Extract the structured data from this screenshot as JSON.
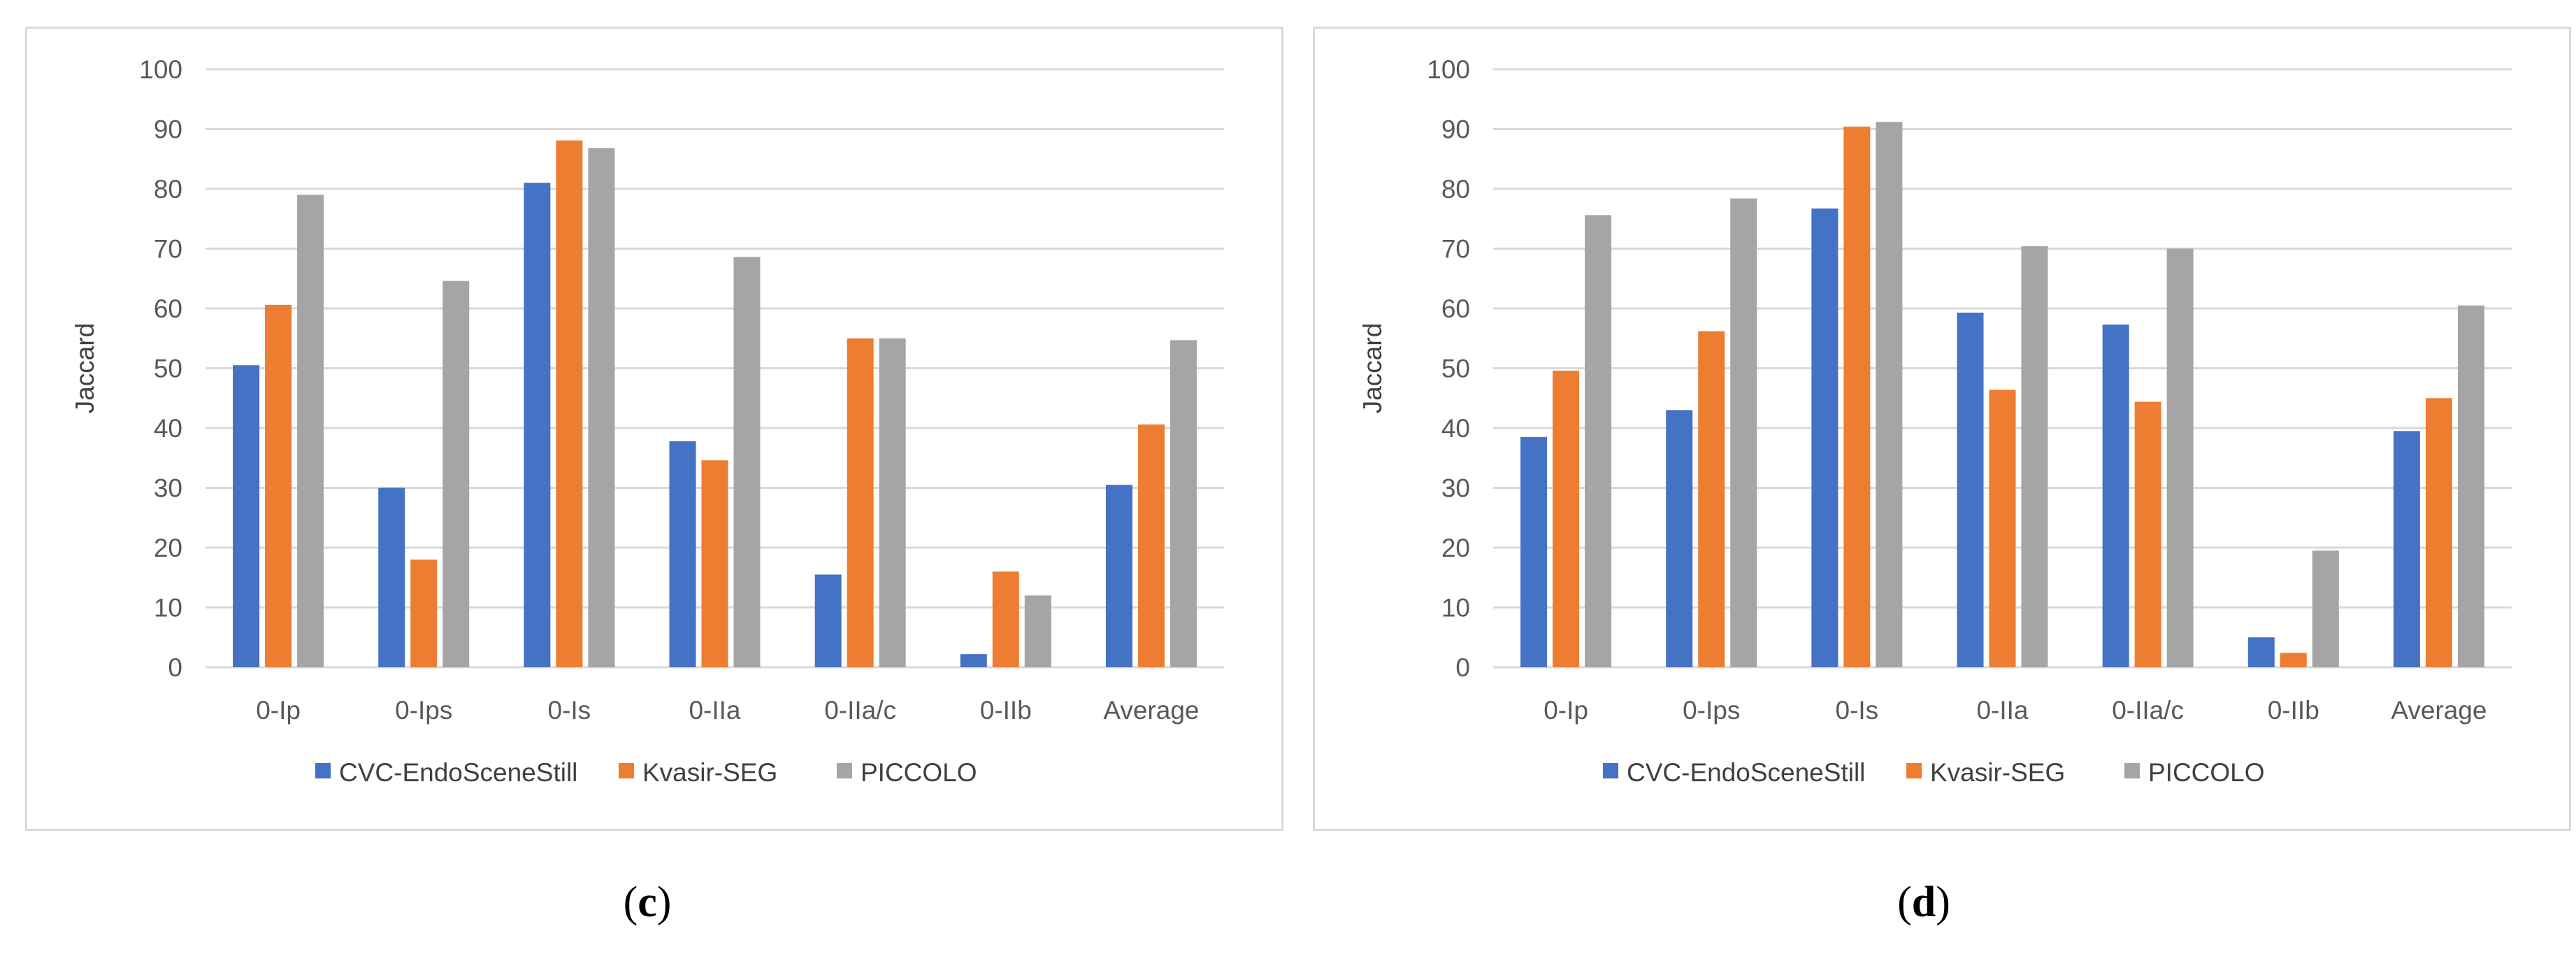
{
  "colors": {
    "series": [
      "#4472C4",
      "#ED7D31",
      "#A5A5A5"
    ],
    "grid": "#d9d9d9",
    "panel_border": "#d9d9d9"
  },
  "chart_data": [
    {
      "id": "c",
      "type": "bar",
      "title": "",
      "xlabel": "",
      "ylabel": "Jaccard",
      "ylim": [
        0,
        100
      ],
      "yticks": [
        "0",
        "10",
        "20",
        "30",
        "40",
        "50",
        "60",
        "70",
        "80",
        "90",
        "100"
      ],
      "categories": [
        "0-Ip",
        "0-Ips",
        "0-Is",
        "0-IIa",
        "0-IIa/c",
        "0-IIb",
        "Average"
      ],
      "series": [
        {
          "name": "CVC-EndoSceneStill",
          "values": [
            50.5,
            30,
            81,
            37.8,
            15.5,
            2.2,
            30.5
          ]
        },
        {
          "name": "Kvasir-SEG",
          "values": [
            60.6,
            18,
            88.1,
            34.6,
            55,
            16,
            40.6
          ]
        },
        {
          "name": "PICCOLO",
          "values": [
            79,
            64.6,
            86.8,
            68.6,
            55,
            12,
            54.7
          ]
        }
      ],
      "legend": "bottom",
      "grid": true,
      "caption_letter": "c"
    },
    {
      "id": "d",
      "type": "bar",
      "title": "",
      "xlabel": "",
      "ylabel": "Jaccard",
      "ylim": [
        0,
        100
      ],
      "yticks": [
        "0",
        "10",
        "20",
        "30",
        "40",
        "50",
        "60",
        "70",
        "80",
        "90",
        "100"
      ],
      "categories": [
        "0-Ip",
        "0-Ips",
        "0-Is",
        "0-IIa",
        "0-IIa/c",
        "0-IIb",
        "Average"
      ],
      "series": [
        {
          "name": "CVC-EndoSceneStill",
          "values": [
            38.5,
            43,
            76.7,
            59.3,
            57.3,
            5,
            39.5
          ]
        },
        {
          "name": "Kvasir-SEG",
          "values": [
            49.6,
            56.2,
            90.4,
            46.4,
            44.4,
            2.4,
            45
          ]
        },
        {
          "name": "PICCOLO",
          "values": [
            75.6,
            78.4,
            91.2,
            70.4,
            70,
            19.5,
            60.5
          ]
        }
      ],
      "legend": "bottom",
      "grid": true,
      "caption_letter": "d"
    }
  ]
}
